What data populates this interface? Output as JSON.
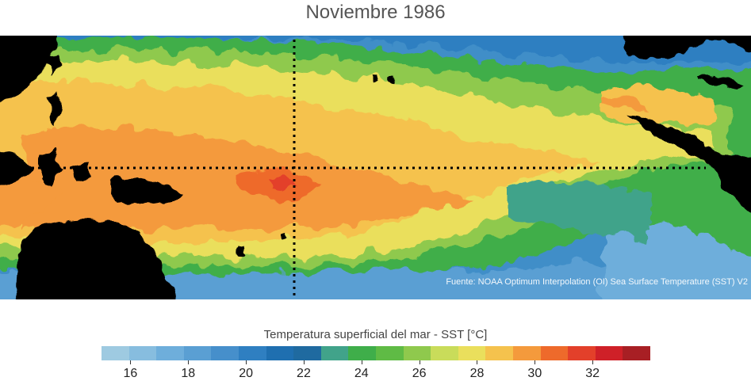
{
  "title": "Noviembre 1986",
  "source": "Fuente: NOAA Optimum Interpolation (OI) Sea Surface Temperature (SST) V2",
  "colorbar": {
    "title": "Temperatura superficial del mar - SST  [°C]",
    "min": 15,
    "max": 34,
    "tick_labels": [
      "16",
      "18",
      "20",
      "22",
      "24",
      "26",
      "28",
      "30",
      "32"
    ],
    "colors": [
      "#9ecae1",
      "#87bddf",
      "#6eaedb",
      "#5a9fd3",
      "#468fcb",
      "#2f7fc1",
      "#1f6fb0",
      "#1f6aa0",
      "#41a38a",
      "#3fae4a",
      "#5fbb45",
      "#8fc94d",
      "#c9dc5a",
      "#eadf5c",
      "#f5c24d",
      "#f49a3c",
      "#ee6a2b",
      "#e3402a",
      "#cf2028",
      "#a81f24"
    ]
  },
  "map_legend": {
    "land_color": "#000000",
    "equator_line": "dotted",
    "meridian_line": "dotted"
  }
}
